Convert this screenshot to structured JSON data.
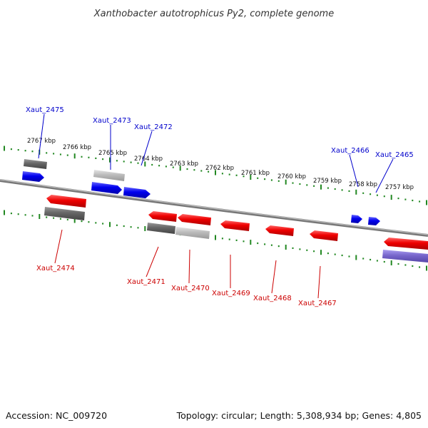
{
  "title": "Xanthobacter autotrophicus Py2, complete genome",
  "footer": {
    "accession": "Accession: NC_009720",
    "summary": "Topology: circular; Length: 5,308,934 bp; Genes: 4,805"
  },
  "colors": {
    "forward_gene_label": "#0000cc",
    "reverse_gene_label": "#cc0000",
    "forward_gene": "#0000ee",
    "reverse_gene": "#ee0000",
    "rna_dark": "#666666",
    "rna_light": "#bbbbbb",
    "rna_violet": "#7766cc",
    "ticks": "#228822",
    "backbone": "#888888"
  },
  "kbp_ticks": [
    "2767 kbp",
    "2766 kbp",
    "2765 kbp",
    "2764 kbp",
    "2763 kbp",
    "2762 kbp",
    "2761 kbp",
    "2760 kbp",
    "2759 kbp",
    "2758 kbp",
    "2757 kbp"
  ],
  "gene_labels": [
    {
      "id": "g2475",
      "text": "Xaut_2475",
      "strand": "forward"
    },
    {
      "id": "g2473",
      "text": "Xaut_2473",
      "strand": "forward"
    },
    {
      "id": "g2472",
      "text": "Xaut_2472",
      "strand": "forward"
    },
    {
      "id": "g2466",
      "text": "Xaut_2466",
      "strand": "forward"
    },
    {
      "id": "g2465",
      "text": "Xaut_2465",
      "strand": "forward"
    },
    {
      "id": "g2474",
      "text": "Xaut_2474",
      "strand": "reverse"
    },
    {
      "id": "g2471",
      "text": "Xaut_2471",
      "strand": "reverse"
    },
    {
      "id": "g2470",
      "text": "Xaut_2470",
      "strand": "reverse"
    },
    {
      "id": "g2469",
      "text": "Xaut_2469",
      "strand": "reverse"
    },
    {
      "id": "g2468",
      "text": "Xaut_2468",
      "strand": "reverse"
    },
    {
      "id": "g2467",
      "text": "Xaut_2467",
      "strand": "reverse"
    }
  ]
}
